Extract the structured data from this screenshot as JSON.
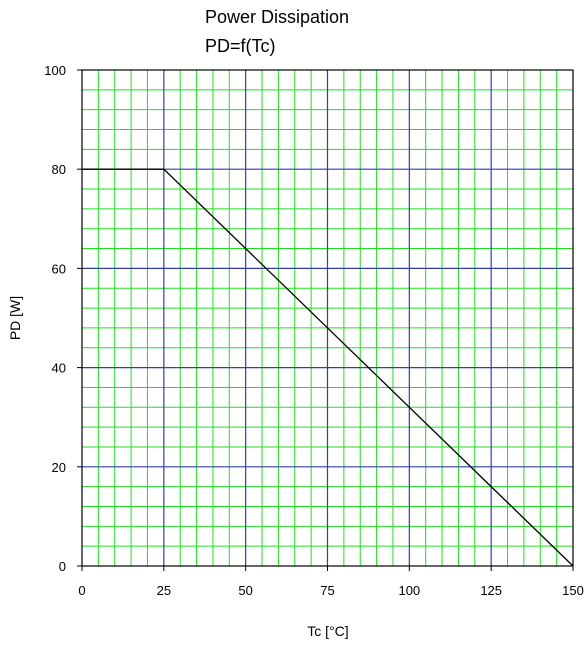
{
  "chart_data": {
    "type": "line",
    "title": "Power Dissipation",
    "subtitle": "PD=f(Tc)",
    "xlabel": "Tc [°C]",
    "ylabel": "PD [W]",
    "xlim": [
      0,
      150
    ],
    "ylim": [
      0,
      100
    ],
    "x_ticks": [
      0,
      25,
      50,
      75,
      100,
      125,
      150
    ],
    "y_ticks": [
      0,
      20,
      40,
      60,
      80,
      100
    ],
    "x_minor_step": 5,
    "y_minor_step": 4,
    "grid": true,
    "colors": {
      "major_grid": "#2f3fa8",
      "minor_grid": "#22dd22",
      "line": "#000000",
      "frame": "#000000"
    },
    "series": [
      {
        "x": [
          0,
          25,
          150
        ],
        "y": [
          80,
          80,
          0
        ]
      }
    ]
  }
}
